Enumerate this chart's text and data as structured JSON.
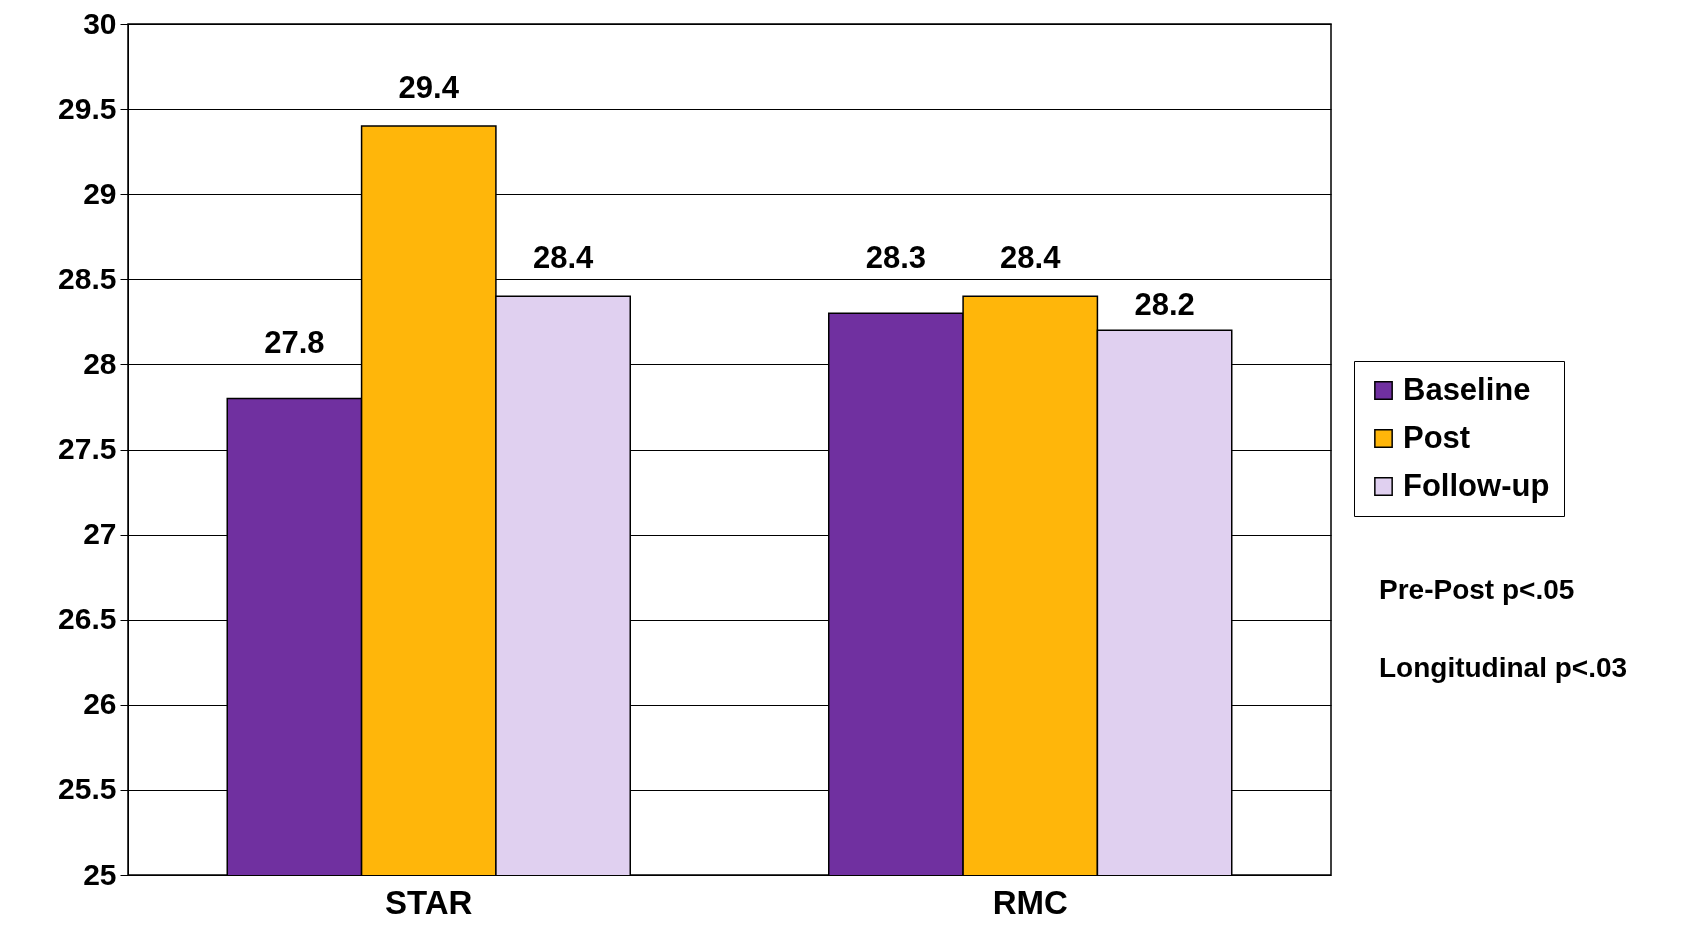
{
  "chart_data": {
    "type": "bar",
    "categories": [
      "STAR",
      "RMC"
    ],
    "series": [
      {
        "name": "Baseline",
        "color": "#7030a0",
        "values": [
          27.8,
          28.3
        ]
      },
      {
        "name": "Post",
        "color": "#ffb60a",
        "values": [
          29.4,
          28.4
        ]
      },
      {
        "name": "Follow-up",
        "color": "#e0d0f0",
        "values": [
          28.4,
          28.2
        ]
      }
    ],
    "ylim": [
      25,
      30
    ],
    "yticks": [
      25,
      25.5,
      26,
      26.5,
      27,
      27.5,
      28,
      28.5,
      29,
      29.5,
      30
    ],
    "grid": "y",
    "legend": "right",
    "data_labels": true,
    "annotations": [
      "Pre-Post p<.05",
      "Longitudinal p<.03"
    ]
  }
}
